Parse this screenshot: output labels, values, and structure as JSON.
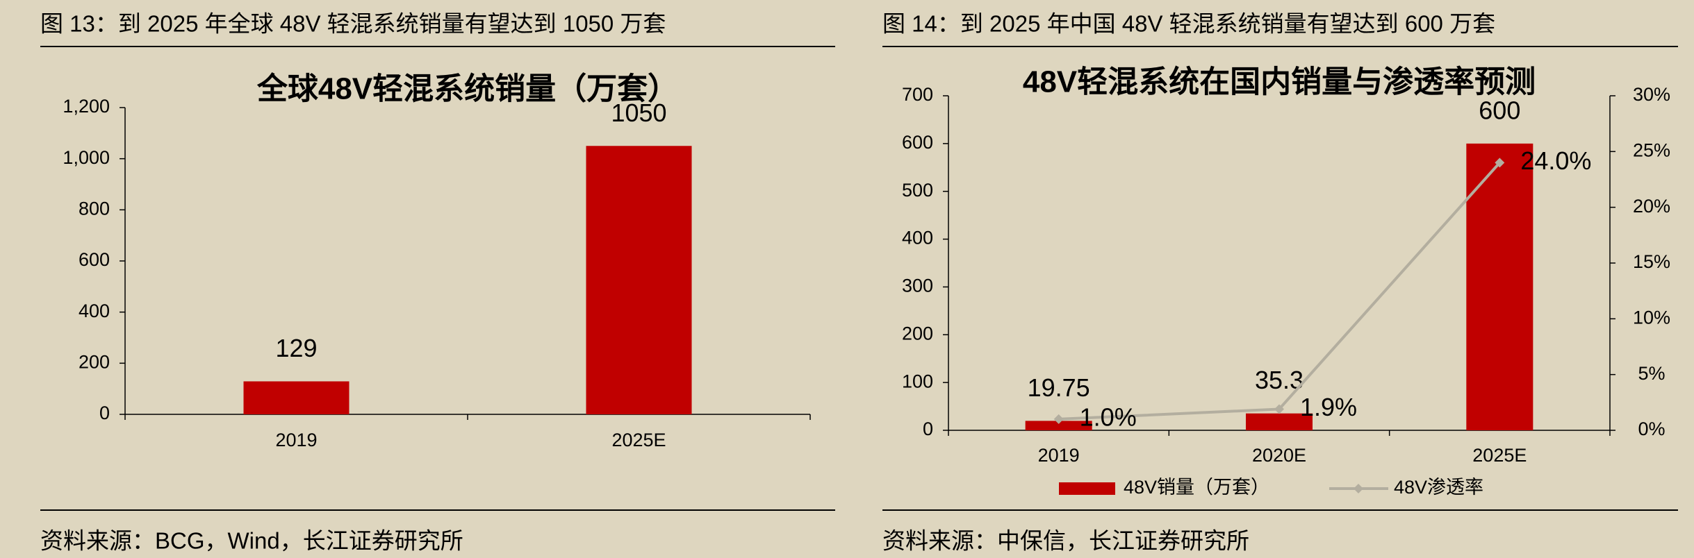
{
  "chart_data": [
    {
      "type": "bar",
      "caption": "图  13：到 2025 年全球 48V 轻混系统销量有望达到 1050 万套",
      "title": "全球48V轻混系统销量（万套）",
      "categories": [
        "2019",
        "2025E"
      ],
      "values": [
        129,
        1050
      ],
      "color": "#c00000",
      "ylim": [
        0,
        1200
      ],
      "yticks": [
        0,
        200,
        400,
        600,
        800,
        {
          "value": 1000,
          "label": "1,000"
        },
        {
          "value": 1200,
          "label": "1,200"
        }
      ],
      "source": "资料来源：BCG，Wind，长江证券研究所"
    },
    {
      "type": "bar-line",
      "caption": "图  14：到 2025 年中国 48V 轻混系统销量有望达到 600 万套",
      "title": "48V轻混系统在国内销量与渗透率预测",
      "categories": [
        "2019",
        "2020E",
        "2025E"
      ],
      "series": [
        {
          "name": "48V销量（万套）",
          "type": "bar",
          "color": "#c00000",
          "values": [
            19.75,
            35.3,
            600
          ]
        },
        {
          "name": "48V渗透率",
          "type": "line",
          "axis": "y2",
          "color": "#b3ae9f",
          "values": [
            1.0,
            1.9,
            24.0
          ],
          "value_labels": [
            "1.0%",
            "1.9%",
            "24.0%"
          ]
        }
      ],
      "ylim": [
        0,
        700
      ],
      "yticks": [
        0,
        100,
        200,
        300,
        400,
        500,
        600,
        700
      ],
      "y2lim": [
        0,
        30
      ],
      "y2ticks": [
        {
          "value": 0,
          "label": "0%"
        },
        {
          "value": 5,
          "label": "5%"
        },
        {
          "value": 10,
          "label": "10%"
        },
        {
          "value": 15,
          "label": "15%"
        },
        {
          "value": 20,
          "label": "20%"
        },
        {
          "value": 25,
          "label": "25%"
        },
        {
          "value": 30,
          "label": "30%"
        }
      ],
      "legend": "bottom",
      "source": "资料来源：中保信，长江证券研究所"
    }
  ]
}
